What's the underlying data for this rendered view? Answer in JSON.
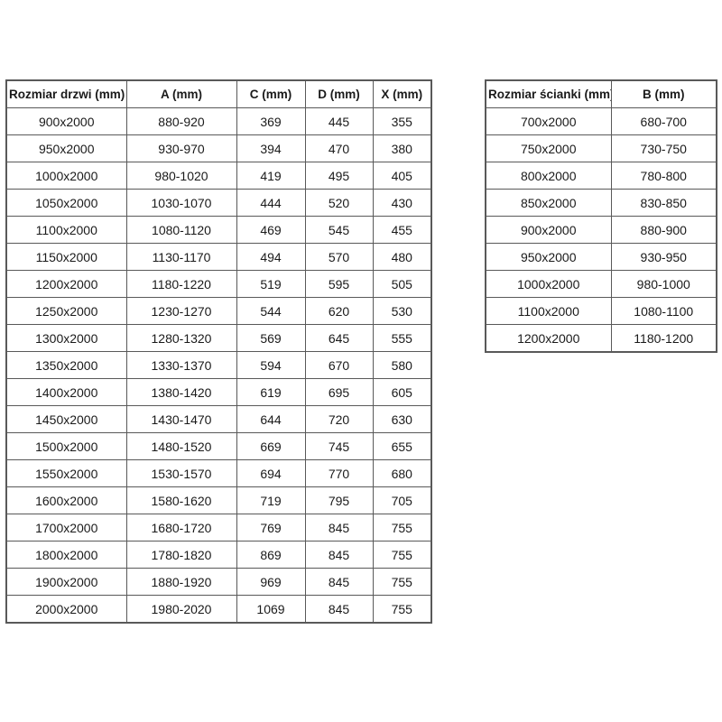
{
  "doors_table": {
    "headers": [
      "Rozmiar drzwi (mm)",
      "A (mm)",
      "C (mm)",
      "D (mm)",
      "X (mm)"
    ],
    "rows": [
      [
        "900x2000",
        "880-920",
        "369",
        "445",
        "355"
      ],
      [
        "950x2000",
        "930-970",
        "394",
        "470",
        "380"
      ],
      [
        "1000x2000",
        "980-1020",
        "419",
        "495",
        "405"
      ],
      [
        "1050x2000",
        "1030-1070",
        "444",
        "520",
        "430"
      ],
      [
        "1100x2000",
        "1080-1120",
        "469",
        "545",
        "455"
      ],
      [
        "1150x2000",
        "1130-1170",
        "494",
        "570",
        "480"
      ],
      [
        "1200x2000",
        "1180-1220",
        "519",
        "595",
        "505"
      ],
      [
        "1250x2000",
        "1230-1270",
        "544",
        "620",
        "530"
      ],
      [
        "1300x2000",
        "1280-1320",
        "569",
        "645",
        "555"
      ],
      [
        "1350x2000",
        "1330-1370",
        "594",
        "670",
        "580"
      ],
      [
        "1400x2000",
        "1380-1420",
        "619",
        "695",
        "605"
      ],
      [
        "1450x2000",
        "1430-1470",
        "644",
        "720",
        "630"
      ],
      [
        "1500x2000",
        "1480-1520",
        "669",
        "745",
        "655"
      ],
      [
        "1550x2000",
        "1530-1570",
        "694",
        "770",
        "680"
      ],
      [
        "1600x2000",
        "1580-1620",
        "719",
        "795",
        "705"
      ],
      [
        "1700x2000",
        "1680-1720",
        "769",
        "845",
        "755"
      ],
      [
        "1800x2000",
        "1780-1820",
        "869",
        "845",
        "755"
      ],
      [
        "1900x2000",
        "1880-1920",
        "969",
        "845",
        "755"
      ],
      [
        "2000x2000",
        "1980-2020",
        "1069",
        "845",
        "755"
      ]
    ]
  },
  "walls_table": {
    "headers": [
      "Rozmiar ścianki (mm)",
      "B (mm)"
    ],
    "rows": [
      [
        "700x2000",
        "680-700"
      ],
      [
        "750x2000",
        "730-750"
      ],
      [
        "800x2000",
        "780-800"
      ],
      [
        "850x2000",
        "830-850"
      ],
      [
        "900x2000",
        "880-900"
      ],
      [
        "950x2000",
        "930-950"
      ],
      [
        "1000x2000",
        "980-1000"
      ],
      [
        "1100x2000",
        "1080-1100"
      ],
      [
        "1200x2000",
        "1180-1200"
      ]
    ]
  },
  "colors": {
    "border": "#595959",
    "text": "#1a1a1a",
    "background": "#ffffff"
  }
}
